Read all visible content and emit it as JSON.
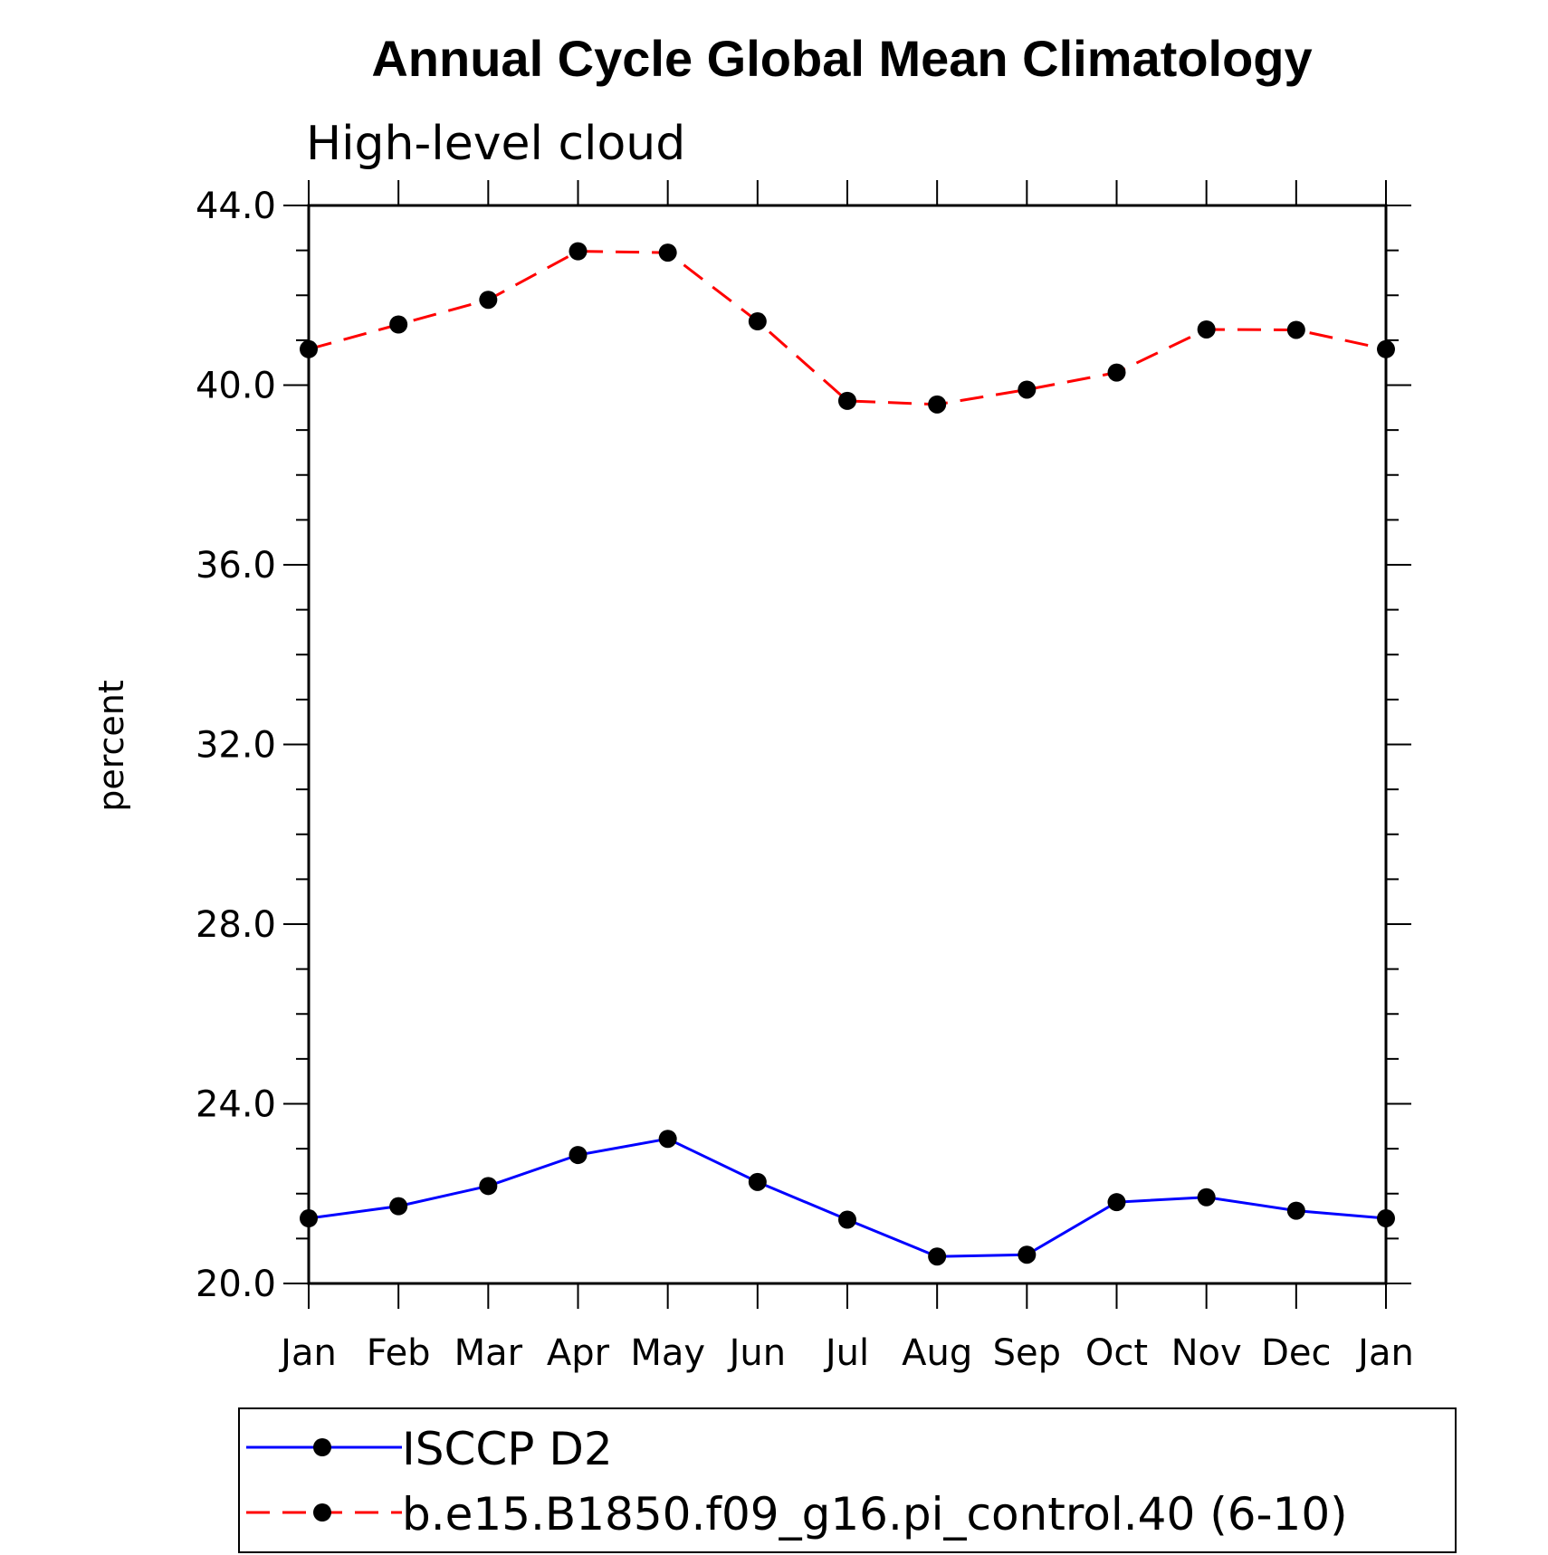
{
  "chart_data": {
    "type": "line",
    "title": "Annual Cycle Global Mean Climatology",
    "subtitle": "High-level cloud",
    "xlabel": "",
    "ylabel": "percent",
    "categories": [
      "Jan",
      "Feb",
      "Mar",
      "Apr",
      "May",
      "Jun",
      "Jul",
      "Aug",
      "Sep",
      "Oct",
      "Nov",
      "Dec",
      "Jan"
    ],
    "ylim": [
      20.0,
      44.0
    ],
    "yticks": [
      "20.0",
      "24.0",
      "28.0",
      "32.0",
      "36.0",
      "40.0",
      "44.0"
    ],
    "grid": false,
    "legend_position": "bottom",
    "series": [
      {
        "name": "ISCCP D2",
        "color": "#0000ff",
        "line_style": "solid",
        "marker": "filled-circle",
        "values": [
          21.45,
          21.72,
          22.17,
          22.86,
          23.22,
          22.26,
          21.42,
          20.6,
          20.64,
          21.81,
          21.92,
          21.62,
          21.45
        ]
      },
      {
        "name": "b.e15.B1850.f09_g16.pi_control.40 (6-10)",
        "color": "#ff0000",
        "line_style": "dashed",
        "marker": "filled-circle",
        "values": [
          40.8,
          41.35,
          41.9,
          42.98,
          42.95,
          41.42,
          39.65,
          39.57,
          39.9,
          40.28,
          41.24,
          41.23,
          40.8
        ]
      }
    ]
  }
}
